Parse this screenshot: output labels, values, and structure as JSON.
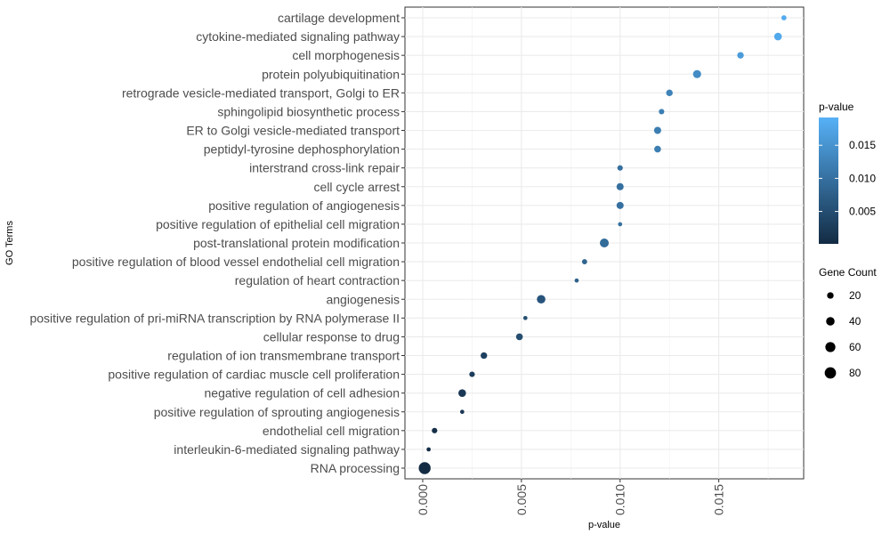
{
  "chart_data": {
    "type": "scatter",
    "xlabel": "p-value",
    "ylabel": "GO Terms",
    "xlim": [
      -0.0009,
      0.0193
    ],
    "x_ticks": [
      0.0,
      0.005,
      0.01,
      0.015
    ],
    "x_tick_labels": [
      "0.000",
      "0.005",
      "0.010",
      "0.015"
    ],
    "grid": true,
    "legend_position": "right",
    "color_scale": {
      "title": "p-value",
      "low_color": "#132B43",
      "high_color": "#56B1F7",
      "range": [
        0.0001,
        0.0192
      ],
      "ticks": [
        0.005,
        0.01,
        0.015
      ],
      "tick_labels": [
        "0.005",
        "0.010",
        "0.015"
      ]
    },
    "size_legend": {
      "title": "Gene Count",
      "values": [
        20,
        40,
        60,
        80
      ],
      "labels": [
        "20",
        "40",
        "60",
        "80"
      ]
    },
    "points": [
      {
        "term": "cartilage development",
        "x": 0.0183,
        "count": 10
      },
      {
        "term": "cytokine-mediated signaling pathway",
        "x": 0.018,
        "count": 30
      },
      {
        "term": "cell morphogenesis",
        "x": 0.0161,
        "count": 20
      },
      {
        "term": "protein polyubiquitination",
        "x": 0.0139,
        "count": 35
      },
      {
        "term": "retrograde vesicle-mediated transport, Golgi to ER",
        "x": 0.0125,
        "count": 20
      },
      {
        "term": "sphingolipid biosynthetic process",
        "x": 0.0121,
        "count": 12
      },
      {
        "term": "ER to Golgi vesicle-mediated transport",
        "x": 0.0119,
        "count": 25
      },
      {
        "term": "peptidyl-tyrosine dephosphorylation",
        "x": 0.0119,
        "count": 22
      },
      {
        "term": "interstrand cross-link repair",
        "x": 0.01,
        "count": 12
      },
      {
        "term": "cell cycle arrest",
        "x": 0.01,
        "count": 25
      },
      {
        "term": "positive regulation of angiogenesis",
        "x": 0.01,
        "count": 25
      },
      {
        "term": "positive regulation of epithelial cell migration",
        "x": 0.01,
        "count": 5
      },
      {
        "term": "post-translational protein modification",
        "x": 0.0092,
        "count": 45
      },
      {
        "term": "positive regulation of blood vessel endothelial cell migration",
        "x": 0.0082,
        "count": 10
      },
      {
        "term": "regulation of heart contraction",
        "x": 0.0078,
        "count": 5
      },
      {
        "term": "angiogenesis",
        "x": 0.006,
        "count": 40
      },
      {
        "term": "positive regulation of pri-miRNA transcription by RNA polymerase II",
        "x": 0.0052,
        "count": 5
      },
      {
        "term": "cellular response to drug",
        "x": 0.0049,
        "count": 22
      },
      {
        "term": "regulation of ion transmembrane transport",
        "x": 0.0031,
        "count": 20
      },
      {
        "term": "positive regulation of cardiac muscle cell proliferation",
        "x": 0.0025,
        "count": 12
      },
      {
        "term": "negative regulation of cell adhesion",
        "x": 0.002,
        "count": 30
      },
      {
        "term": "positive regulation of sprouting angiogenesis",
        "x": 0.002,
        "count": 5
      },
      {
        "term": "endothelial cell migration",
        "x": 0.0006,
        "count": 12
      },
      {
        "term": "interleukin-6-mediated signaling pathway",
        "x": 0.0003,
        "count": 5
      },
      {
        "term": "RNA processing",
        "x": 0.0001,
        "count": 90
      }
    ]
  }
}
